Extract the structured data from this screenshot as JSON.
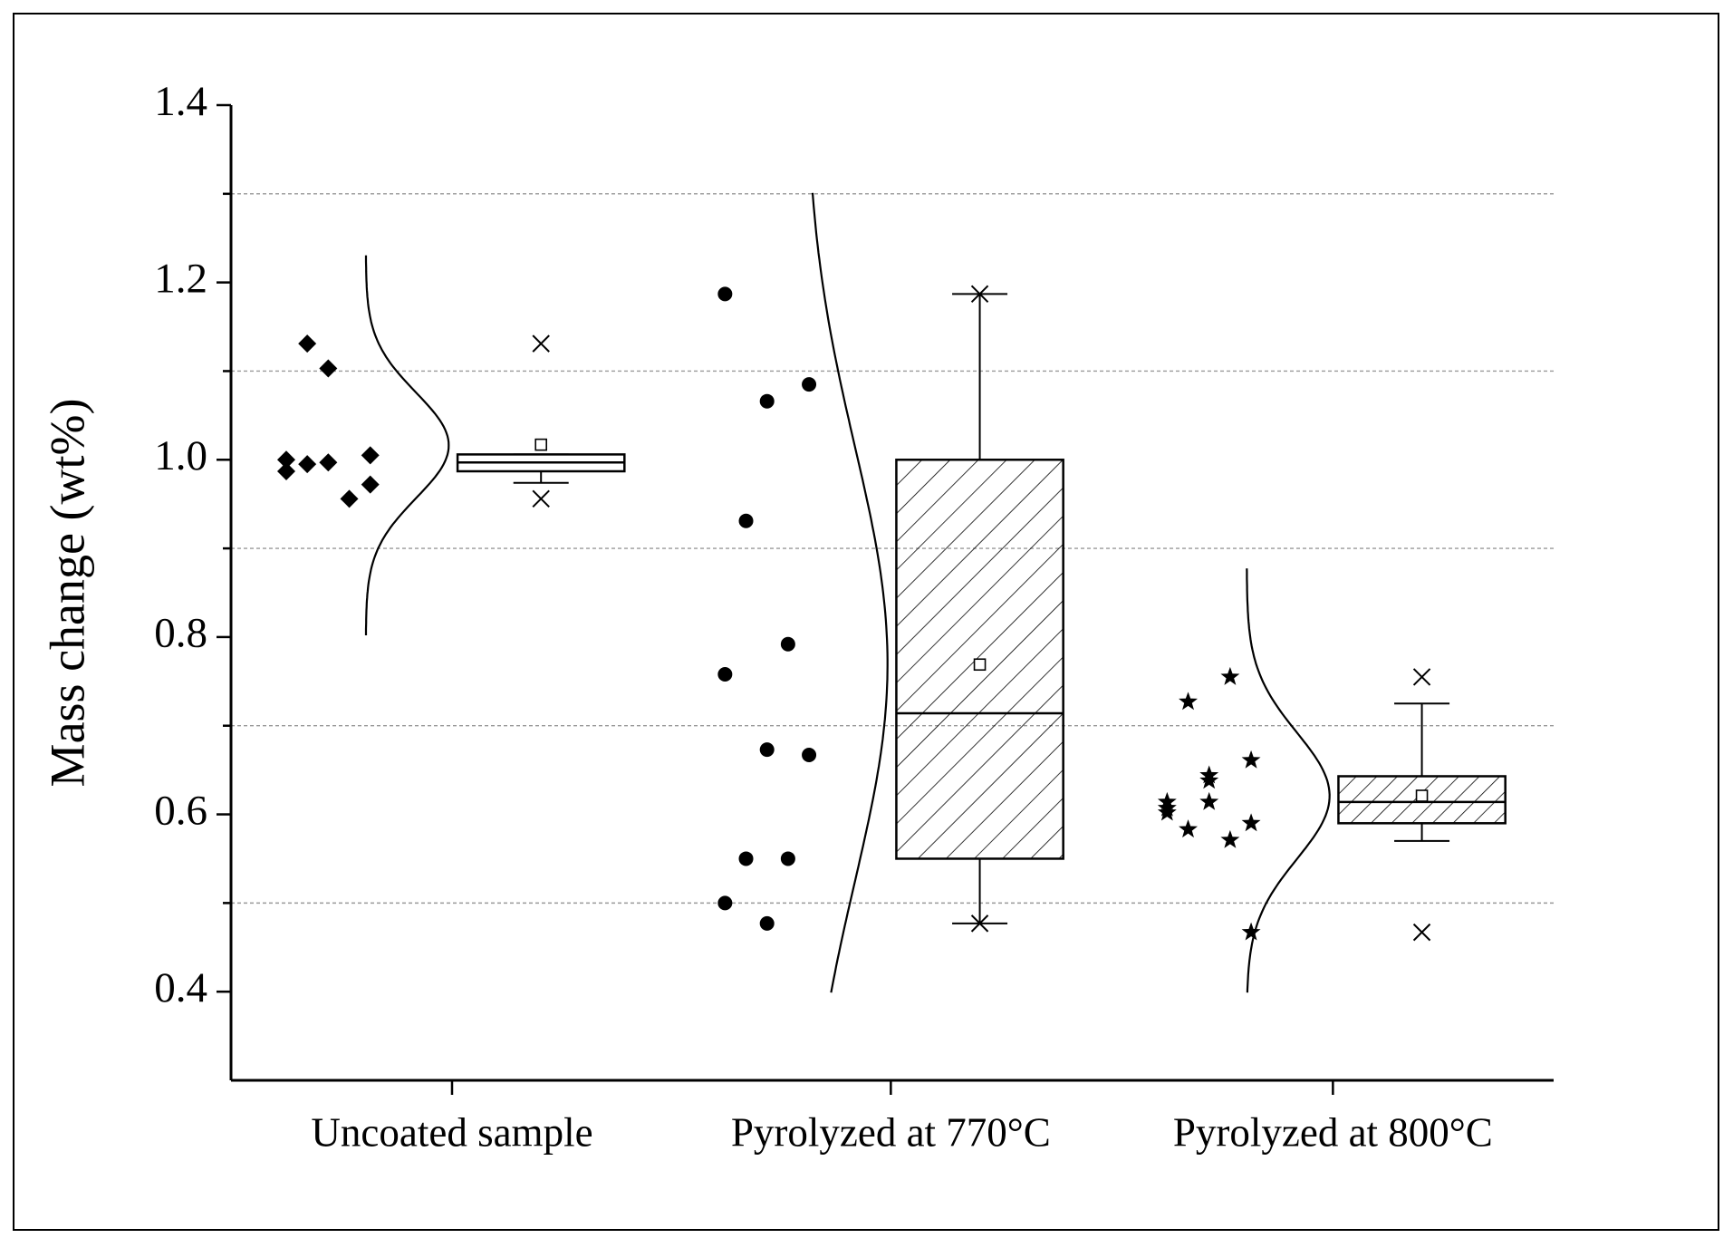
{
  "chart_data": {
    "type": "box",
    "y_label": "Mass change (wt%)",
    "categories": [
      "Uncoated sample",
      "Pyrolyzed at 770°C",
      "Pyrolyzed at 800°C"
    ],
    "ylim": [
      0.3,
      1.4
    ],
    "yticks": [
      0.4,
      0.6,
      0.8,
      {
        "value": 1,
        "label": "1.0"
      },
      1.2,
      1.4
    ],
    "dashed_grid": [
      0.5,
      0.7,
      0.9,
      1.1,
      1.3
    ],
    "groups": [
      {
        "marker": "diamond",
        "hatch": "none",
        "points": [
          0.987,
          0.997,
          1.005,
          1.131,
          0.956,
          1.0,
          1.103,
          0.972,
          0.995
        ],
        "q1": 0.987,
        "median": 0.997,
        "q3": 1.006,
        "mean": 1.017,
        "whisker_low": 0.974,
        "whisker_high": 1.006,
        "extremes": [
          1.131,
          0.956
        ]
      },
      {
        "marker": "circle",
        "hatch": "dense",
        "points": [
          1.187,
          1.066,
          1.085,
          0.931,
          0.792,
          0.758,
          0.673,
          0.667,
          0.55,
          0.55,
          0.5,
          0.477
        ],
        "q1": 0.55,
        "median": 0.714,
        "q3": 1.0,
        "mean": 0.769,
        "whisker_low": 0.477,
        "whisker_high": 1.187,
        "extremes": [
          1.187,
          0.477
        ]
      },
      {
        "marker": "star",
        "hatch": "sparse",
        "points": [
          0.607,
          0.638,
          0.661,
          0.727,
          0.755,
          0.614,
          0.614,
          0.59,
          0.583,
          0.571,
          0.602,
          0.644,
          0.467
        ],
        "q1": 0.59,
        "median": 0.614,
        "q3": 0.643,
        "mean": 0.621,
        "whisker_low": 0.57,
        "whisker_high": 0.725,
        "extremes": [
          0.755,
          0.467
        ]
      }
    ]
  }
}
